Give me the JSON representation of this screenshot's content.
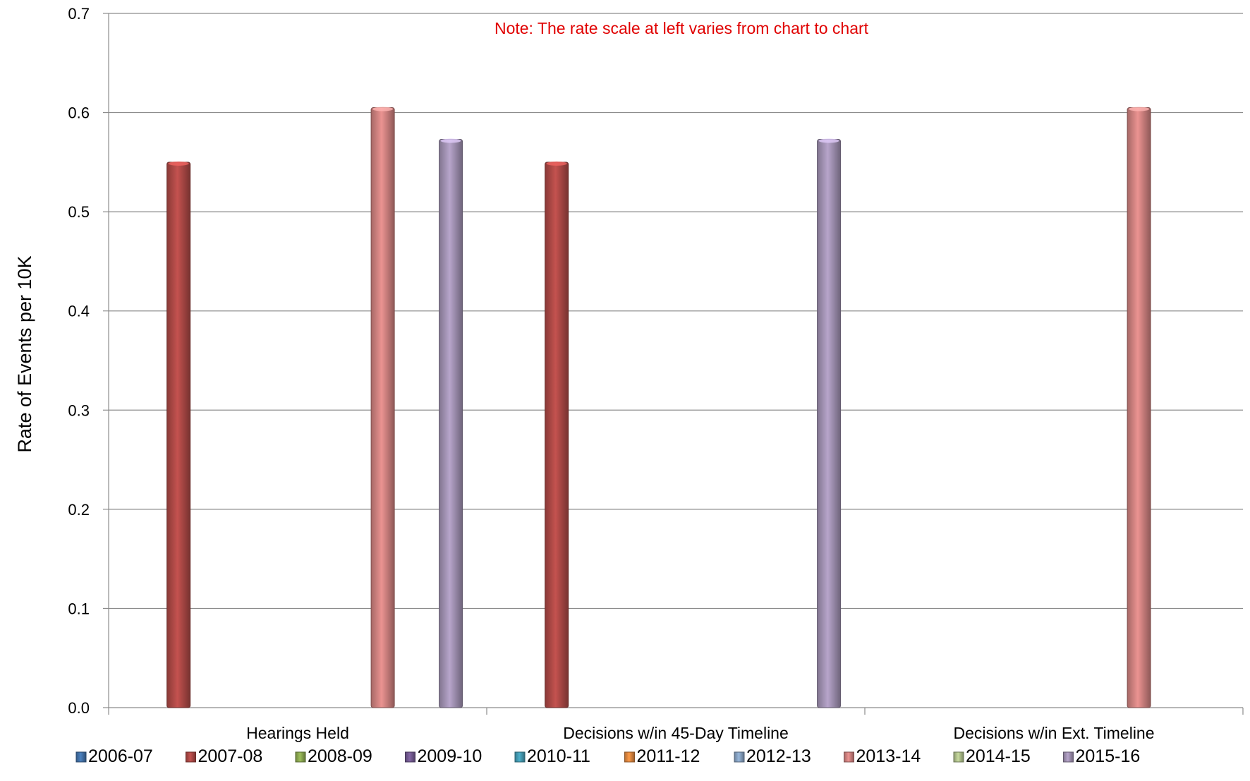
{
  "chart_data": {
    "type": "bar",
    "title": "",
    "note": "Note:  The rate scale at left varies from chart to chart",
    "ylabel": "Rate of Events per 10K",
    "xlabel": "",
    "ylim": [
      0,
      0.7
    ],
    "yticks": [
      "0.0",
      "0.1",
      "0.2",
      "0.3",
      "0.4",
      "0.5",
      "0.6",
      "0.7"
    ],
    "grid": true,
    "legend_position": "bottom",
    "categories": [
      "Hearings Held",
      "Decisions w/in 45-Day Timeline",
      "Decisions w/in Ext. Timeline"
    ],
    "series": [
      {
        "name": "2006-07",
        "color": "#4a7ebb",
        "values": [
          null,
          null,
          null
        ]
      },
      {
        "name": "2007-08",
        "color": "#c0504d",
        "values": [
          0.55,
          0.55,
          null
        ]
      },
      {
        "name": "2008-09",
        "color": "#9bbb59",
        "values": [
          null,
          null,
          null
        ]
      },
      {
        "name": "2009-10",
        "color": "#8064a2",
        "values": [
          null,
          null,
          null
        ]
      },
      {
        "name": "2010-11",
        "color": "#4bacc6",
        "values": [
          null,
          null,
          null
        ]
      },
      {
        "name": "2011-12",
        "color": "#f79646",
        "values": [
          null,
          null,
          null
        ]
      },
      {
        "name": "2012-13",
        "color": "#95b3d7",
        "values": [
          null,
          null,
          null
        ]
      },
      {
        "name": "2013-14",
        "color": "#e6908e",
        "values": [
          0.605,
          null,
          0.605
        ]
      },
      {
        "name": "2014-15",
        "color": "#c3d69b",
        "values": [
          null,
          null,
          null
        ]
      },
      {
        "name": "2015-16",
        "color": "#b3a2c7",
        "values": [
          0.573,
          0.573,
          null
        ]
      }
    ]
  }
}
